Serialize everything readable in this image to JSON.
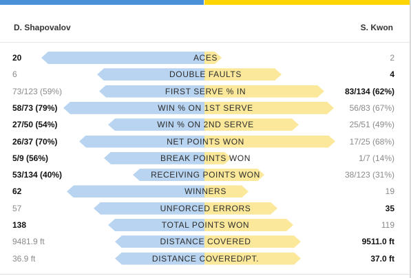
{
  "colors": {
    "player1": "#4a90d9",
    "player2": "#ffd400",
    "player1_bar": "#b8d4f0",
    "player2_bar": "#fbe89a"
  },
  "players": {
    "left": "D. Shapovalov",
    "right": "S. Kwon"
  },
  "stats": [
    {
      "label": "ACES",
      "left": "20",
      "right": "2",
      "winner": "left",
      "left_share": 0.91,
      "right_share": 0.09
    },
    {
      "label": "DOUBLE FAULTS",
      "left": "6",
      "right": "4",
      "winner": "right",
      "left_share": 0.6,
      "right_share": 0.4
    },
    {
      "label": "FIRST SERVE % IN",
      "left": "73/123 (59%)",
      "right": "83/134 (62%)",
      "winner": "right",
      "left_share": 0.59,
      "right_share": 0.62
    },
    {
      "label": "WIN % ON 1ST SERVE",
      "left": "58/73 (79%)",
      "right": "56/83 (67%)",
      "winner": "left",
      "left_share": 0.79,
      "right_share": 0.67
    },
    {
      "label": "WIN % ON 2ND SERVE",
      "left": "27/50 (54%)",
      "right": "25/51 (49%)",
      "winner": "left",
      "left_share": 0.54,
      "right_share": 0.49
    },
    {
      "label": "NET POINTS WON",
      "left": "26/37 (70%)",
      "right": "17/25 (68%)",
      "winner": "left",
      "left_share": 0.7,
      "right_share": 0.68
    },
    {
      "label": "BREAK POINTS WON",
      "left": "5/9 (56%)",
      "right": "1/7 (14%)",
      "winner": "left",
      "left_share": 0.56,
      "right_share": 0.14
    },
    {
      "label": "RECEIVING POINTS WON",
      "left": "53/134 (40%)",
      "right": "38/123 (31%)",
      "winner": "left",
      "left_share": 0.4,
      "right_share": 0.31
    },
    {
      "label": "WINNERS",
      "left": "62",
      "right": "19",
      "winner": "left",
      "left_share": 0.77,
      "right_share": 0.23
    },
    {
      "label": "UNFORCED ERRORS",
      "left": "57",
      "right": "35",
      "winner": "right",
      "left_share": 0.62,
      "right_share": 0.38
    },
    {
      "label": "TOTAL POINTS WON",
      "left": "138",
      "right": "119",
      "winner": "left",
      "left_share": 0.54,
      "right_share": 0.46
    },
    {
      "label": "DISTANCE COVERED",
      "left": "9481.9 ft",
      "right": "9511.0 ft",
      "winner": "right",
      "left_share": 0.5,
      "right_share": 0.5
    },
    {
      "label": "DISTANCE COVERED/PT.",
      "left": "36.9 ft",
      "right": "37.0 ft",
      "winner": "right",
      "left_share": 0.5,
      "right_share": 0.5
    }
  ]
}
